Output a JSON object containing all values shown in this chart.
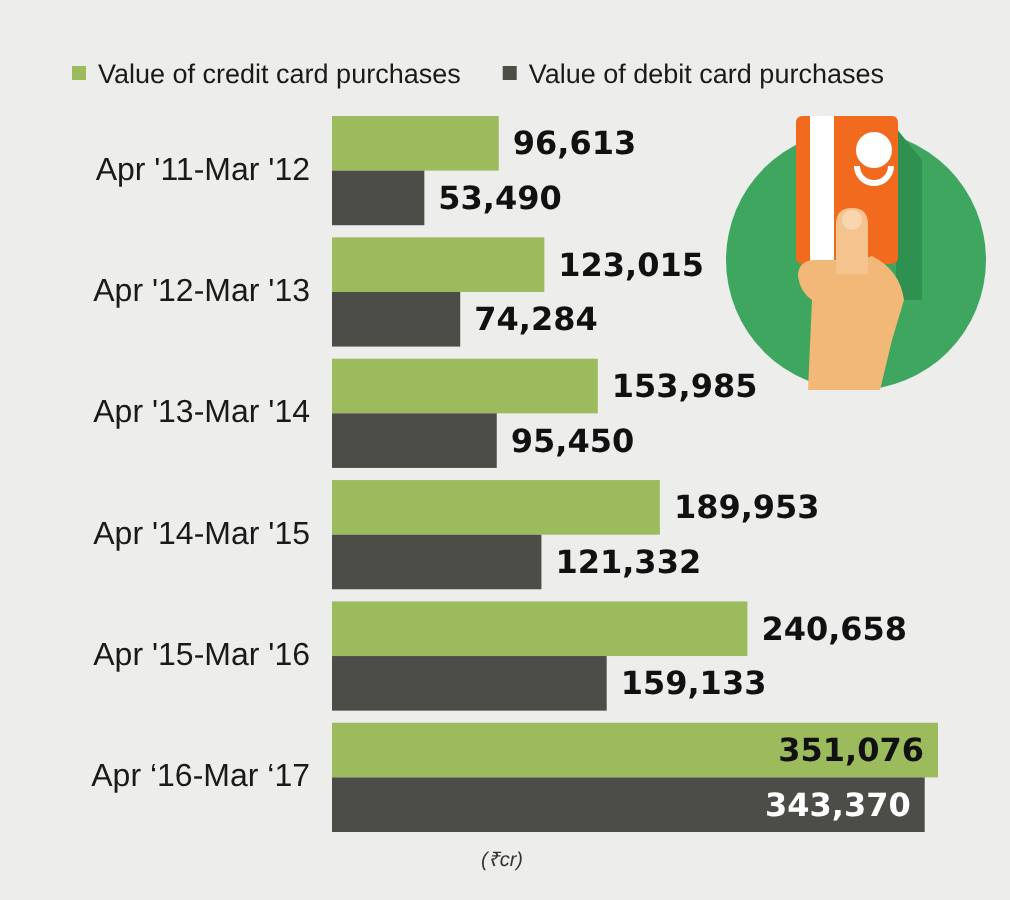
{
  "chart_data": {
    "type": "bar",
    "orientation": "horizontal",
    "categories": [
      "Apr '11-Mar '12",
      "Apr '12-Mar '13",
      "Apr '13-Mar '14",
      "Apr '14-Mar '15",
      "Apr '15-Mar '16",
      "Apr ‘16-Mar ‘17"
    ],
    "series": [
      {
        "name": "Value of credit card purchases",
        "color": "#9cbb5d",
        "values": [
          96613,
          123015,
          153985,
          189953,
          240658,
          351076
        ],
        "value_labels": [
          "96,613",
          "123,015",
          "153,985",
          "189,953",
          "240,658",
          "351,076"
        ]
      },
      {
        "name": "Value of debit card purchases",
        "color": "#4d4d47",
        "values": [
          53490,
          74284,
          95450,
          121332,
          159133,
          343370
        ],
        "value_labels": [
          "53,490",
          "74,284",
          "95,450",
          "121,332",
          "159,133",
          "343,370"
        ]
      }
    ],
    "legend": "top",
    "annotations": [
      "(₹cr)"
    ]
  }
}
